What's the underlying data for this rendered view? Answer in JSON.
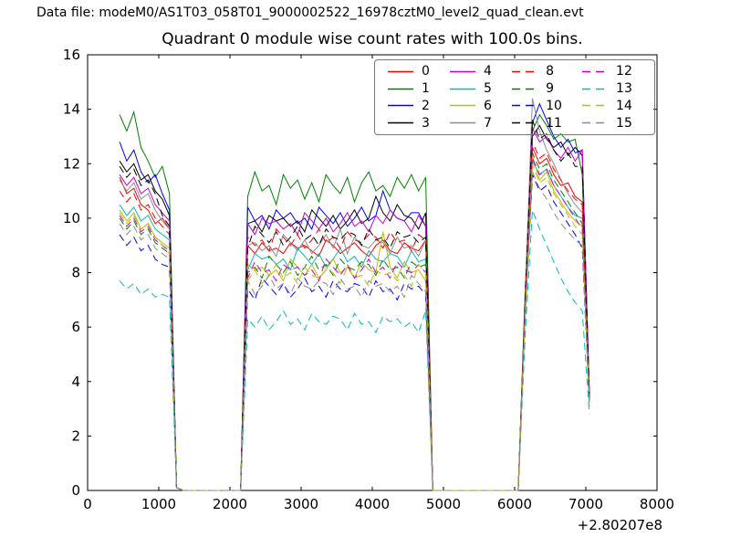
{
  "header": {
    "datafile": "Data file: modeM0/AS1T03_058T01_9000002522_16978cztM0_level2_quad_clean.evt"
  },
  "chart_data": {
    "type": "line",
    "title": "Quadrant 0 module wise count rates with 100.0s bins.",
    "xlabel": "",
    "ylabel": "",
    "bin_seconds": 100.0,
    "xlim": [
      0,
      8000
    ],
    "ylim": [
      0,
      16
    ],
    "xticks": [
      0,
      1000,
      2000,
      3000,
      4000,
      5000,
      6000,
      7000,
      8000
    ],
    "yticks": [
      0,
      2,
      4,
      6,
      8,
      10,
      12,
      14,
      16
    ],
    "x_offset_label": "+2.80207e8",
    "grid": false,
    "legend_position": "upper right",
    "legend_columns": 4,
    "x": [
      450,
      550,
      650,
      750,
      850,
      950,
      1050,
      1150,
      1250,
      1350,
      1450,
      1550,
      1650,
      1750,
      1850,
      1950,
      2050,
      2150,
      2250,
      2350,
      2450,
      2550,
      2650,
      2750,
      2850,
      2950,
      3050,
      3150,
      3250,
      3350,
      3450,
      3550,
      3650,
      3750,
      3850,
      3950,
      4050,
      4150,
      4250,
      4350,
      4450,
      4550,
      4650,
      4750,
      4850,
      4950,
      5050,
      5150,
      5250,
      5350,
      5450,
      5550,
      5650,
      5750,
      5850,
      5950,
      6050,
      6150,
      6250,
      6350,
      6450,
      6550,
      6650,
      6750,
      6850,
      6950,
      7050
    ],
    "series": [
      {
        "name": "0",
        "color": "#ff0000",
        "style": "solid",
        "values": [
          11.5,
          10.9,
          11.1,
          10.5,
          10.3,
          9.8,
          10.0,
          9.6,
          0.1,
          0,
          0,
          0,
          0,
          0,
          0,
          0,
          0,
          0,
          9.0,
          8.7,
          9.1,
          8.8,
          8.9,
          8.7,
          9.1,
          8.9,
          9.0,
          8.8,
          8.6,
          9.2,
          9.0,
          8.7,
          8.9,
          9.1,
          8.8,
          8.6,
          9.0,
          9.2,
          8.8,
          8.7,
          9.1,
          8.9,
          8.8,
          9.2,
          0,
          0,
          0,
          0,
          0,
          0,
          0,
          0,
          0,
          0,
          0,
          0,
          0,
          7.0,
          12.6,
          12.0,
          12.2,
          11.6,
          11.2,
          11.3,
          10.8,
          10.6,
          3.5
        ]
      },
      {
        "name": "1",
        "color": "#008000",
        "style": "solid",
        "values": [
          13.8,
          13.2,
          13.9,
          12.6,
          12.1,
          11.5,
          11.9,
          10.9,
          0.1,
          0,
          0,
          0,
          0,
          0,
          0,
          0,
          0,
          0,
          10.8,
          11.7,
          11.0,
          11.2,
          10.5,
          11.6,
          11.1,
          11.4,
          10.7,
          11.3,
          10.6,
          11.6,
          11.2,
          10.9,
          11.5,
          10.6,
          11.3,
          11.7,
          11.0,
          11.2,
          10.8,
          11.5,
          11.1,
          11.6,
          11.0,
          11.5,
          0,
          0,
          0,
          0,
          0,
          0,
          0,
          0,
          0,
          0,
          0,
          0,
          0,
          7.5,
          13.2,
          13.8,
          13.4,
          12.9,
          13.1,
          12.8,
          12.9,
          11.6,
          3.6
        ]
      },
      {
        "name": "2",
        "color": "#0000ff",
        "style": "solid",
        "values": [
          12.8,
          12.1,
          12.5,
          11.7,
          11.3,
          11.6,
          10.9,
          10.3,
          0.1,
          0,
          0,
          0,
          0,
          0,
          0,
          0,
          0,
          0,
          10.4,
          9.9,
          10.1,
          9.6,
          10.3,
          10.0,
          10.2,
          9.8,
          10.0,
          9.6,
          10.4,
          10.1,
          9.8,
          10.2,
          9.7,
          10.0,
          10.4,
          9.9,
          10.1,
          11.0,
          10.3,
          10.0,
          9.9,
          10.2,
          10.2,
          9.7,
          0,
          0,
          0,
          0,
          0,
          0,
          0,
          0,
          0,
          0,
          0,
          0,
          0,
          7.2,
          13.5,
          14.2,
          13.6,
          13.0,
          12.6,
          12.9,
          12.4,
          12.5,
          3.5
        ]
      },
      {
        "name": "3",
        "color": "#000000",
        "style": "solid",
        "values": [
          12.1,
          11.7,
          12.0,
          11.4,
          11.6,
          11.0,
          10.7,
          10.1,
          0.1,
          0,
          0,
          0,
          0,
          0,
          0,
          0,
          0,
          0,
          9.8,
          9.9,
          9.5,
          10.1,
          9.9,
          10.0,
          9.7,
          9.9,
          9.5,
          10.3,
          10.0,
          9.7,
          10.1,
          9.6,
          9.9,
          10.3,
          9.8,
          10.0,
          10.8,
          10.2,
          9.9,
          10.5,
          10.1,
          10.0,
          9.6,
          10.2,
          0,
          0,
          0,
          0,
          0,
          0,
          0,
          0,
          0,
          0,
          0,
          0,
          0,
          7.1,
          13.0,
          13.4,
          12.9,
          12.6,
          12.8,
          12.3,
          12.6,
          12.3,
          3.4
        ]
      },
      {
        "name": "4",
        "color": "#cc00cc",
        "style": "solid",
        "values": [
          11.6,
          11.2,
          11.5,
          10.9,
          11.1,
          10.5,
          10.2,
          9.9,
          0.1,
          0,
          0,
          0,
          0,
          0,
          0,
          0,
          0,
          0,
          9.8,
          9.4,
          10.0,
          9.8,
          9.9,
          9.6,
          9.8,
          9.4,
          10.2,
          9.9,
          9.6,
          10.0,
          9.5,
          9.8,
          10.2,
          9.7,
          9.9,
          9.5,
          10.1,
          9.8,
          10.3,
          10.0,
          9.9,
          9.5,
          10.1,
          9.7,
          0,
          0,
          0,
          0,
          0,
          0,
          0,
          0,
          0,
          0,
          0,
          0,
          0,
          7.0,
          13.3,
          12.8,
          13.0,
          12.5,
          12.2,
          12.6,
          12.1,
          12.5,
          3.5
        ]
      },
      {
        "name": "5",
        "color": "#00bcbc",
        "style": "solid",
        "values": [
          10.5,
          10.1,
          10.4,
          9.9,
          10.1,
          9.6,
          9.4,
          9.2,
          0.1,
          0,
          0,
          0,
          0,
          0,
          0,
          0,
          0,
          0,
          8.1,
          8.7,
          8.5,
          8.6,
          8.3,
          8.5,
          8.1,
          8.9,
          8.6,
          8.3,
          8.7,
          8.2,
          8.5,
          8.9,
          8.4,
          8.6,
          8.2,
          8.8,
          8.5,
          8.4,
          8.7,
          8.6,
          8.2,
          8.8,
          8.4,
          8.5,
          0,
          0,
          0,
          0,
          0,
          0,
          0,
          0,
          0,
          0,
          0,
          0,
          0,
          6.8,
          12.1,
          11.6,
          11.8,
          11.2,
          10.8,
          10.4,
          10.1,
          10.0,
          3.3
        ]
      },
      {
        "name": "6",
        "color": "#bcbc00",
        "style": "solid",
        "values": [
          10.3,
          9.9,
          10.2,
          9.6,
          9.8,
          9.3,
          9.1,
          8.9,
          0.1,
          0,
          0,
          0,
          0,
          0,
          0,
          0,
          0,
          0,
          8.3,
          8.1,
          8.2,
          7.9,
          8.1,
          7.7,
          8.5,
          8.2,
          7.9,
          8.3,
          7.8,
          8.1,
          8.5,
          8.0,
          8.2,
          7.8,
          8.4,
          8.1,
          8.0,
          9.5,
          8.2,
          7.8,
          8.4,
          8.0,
          8.1,
          7.7,
          0,
          0,
          0,
          0,
          0,
          0,
          0,
          0,
          0,
          0,
          0,
          0,
          0,
          6.7,
          12.3,
          11.4,
          11.7,
          11.0,
          10.6,
          10.2,
          9.9,
          9.7,
          3.2
        ]
      },
      {
        "name": "7",
        "color": "#8c8c8c",
        "style": "solid",
        "values": [
          11.4,
          11.0,
          11.3,
          10.7,
          10.9,
          10.3,
          9.9,
          9.6,
          0.1,
          0,
          0,
          0,
          0,
          0,
          0,
          0,
          0,
          0,
          9.0,
          9.1,
          8.8,
          9.0,
          8.6,
          9.4,
          9.1,
          8.8,
          9.2,
          8.7,
          9.0,
          9.4,
          8.9,
          9.6,
          8.7,
          9.3,
          9.0,
          8.9,
          9.2,
          9.1,
          8.7,
          9.3,
          8.9,
          9.0,
          8.6,
          9.2,
          0,
          0,
          0,
          0,
          0,
          0,
          0,
          0,
          0,
          0,
          0,
          0,
          0,
          7.3,
          14.4,
          13.2,
          12.5,
          12.0,
          11.4,
          10.9,
          10.5,
          10.2,
          3.4
        ]
      },
      {
        "name": "8",
        "color": "#ff0000",
        "style": "dashed",
        "values": [
          11.0,
          10.6,
          10.9,
          10.3,
          10.5,
          10.0,
          9.7,
          9.4,
          0.1,
          0,
          0,
          0,
          0,
          0,
          0,
          0,
          0,
          0,
          9.3,
          9.0,
          9.2,
          8.8,
          9.6,
          9.3,
          9.0,
          9.4,
          8.9,
          9.2,
          9.6,
          9.1,
          9.3,
          8.9,
          9.5,
          9.2,
          9.1,
          9.4,
          9.3,
          8.9,
          9.5,
          9.1,
          9.2,
          8.8,
          9.4,
          9.2,
          0,
          0,
          0,
          0,
          0,
          0,
          0,
          0,
          0,
          0,
          0,
          0,
          0,
          7.1,
          12.8,
          12.2,
          12.4,
          11.8,
          11.4,
          11.0,
          10.7,
          10.5,
          3.4
        ]
      },
      {
        "name": "9",
        "color": "#008000",
        "style": "dashed",
        "values": [
          10.0,
          9.6,
          9.9,
          9.4,
          9.6,
          9.1,
          8.9,
          8.7,
          0.1,
          0,
          0,
          0,
          0,
          0,
          0,
          0,
          0,
          0,
          8.0,
          8.2,
          7.8,
          8.6,
          8.3,
          8.0,
          8.4,
          7.9,
          8.2,
          8.6,
          8.1,
          8.3,
          7.9,
          8.5,
          8.2,
          8.1,
          8.4,
          8.3,
          7.9,
          8.5,
          8.1,
          8.2,
          7.8,
          8.4,
          8.2,
          8.3,
          0,
          0,
          0,
          0,
          0,
          0,
          0,
          0,
          0,
          0,
          0,
          0,
          0,
          6.9,
          12.4,
          11.8,
          12.0,
          11.4,
          11.0,
          10.6,
          10.2,
          9.8,
          3.3
        ]
      },
      {
        "name": "10",
        "color": "#0000ff",
        "style": "dashed",
        "values": [
          9.4,
          9.0,
          9.3,
          8.8,
          9.0,
          8.5,
          8.3,
          8.2,
          0.1,
          0,
          0,
          0,
          0,
          0,
          0,
          0,
          0,
          0,
          7.4,
          7.0,
          7.8,
          7.5,
          7.2,
          7.6,
          7.1,
          7.4,
          7.8,
          7.3,
          7.5,
          7.1,
          7.7,
          7.4,
          7.3,
          7.6,
          7.5,
          7.1,
          7.7,
          7.3,
          7.4,
          7.0,
          7.6,
          7.4,
          7.5,
          7.2,
          0,
          0,
          0,
          0,
          0,
          0,
          0,
          0,
          0,
          0,
          0,
          0,
          0,
          6.5,
          11.6,
          11.0,
          11.2,
          10.6,
          10.2,
          9.8,
          9.4,
          8.9,
          3.1
        ]
      },
      {
        "name": "11",
        "color": "#000000",
        "style": "dashed",
        "values": [
          11.9,
          11.5,
          11.8,
          11.2,
          11.4,
          10.9,
          10.1,
          9.7,
          0.1,
          0,
          0,
          0,
          0,
          0,
          0,
          0,
          0,
          0,
          8.9,
          9.7,
          9.4,
          9.1,
          9.5,
          9.0,
          9.3,
          9.7,
          9.2,
          9.4,
          9.0,
          9.6,
          9.3,
          9.2,
          9.5,
          9.4,
          9.0,
          9.6,
          9.2,
          9.3,
          8.9,
          9.5,
          9.3,
          9.4,
          9.1,
          9.3,
          0,
          0,
          0,
          0,
          0,
          0,
          0,
          0,
          0,
          0,
          0,
          0,
          0,
          7.2,
          13.6,
          12.9,
          13.1,
          12.5,
          12.1,
          12.4,
          11.9,
          11.9,
          3.4
        ]
      },
      {
        "name": "12",
        "color": "#cc00cc",
        "style": "dashed",
        "values": [
          10.1,
          9.7,
          10.0,
          9.5,
          9.7,
          9.2,
          9.0,
          8.8,
          0.1,
          0,
          0,
          0,
          0,
          0,
          0,
          0,
          0,
          0,
          7.8,
          8.4,
          8.0,
          8.1,
          7.7,
          8.3,
          8.1,
          8.2,
          7.9,
          8.1,
          7.7,
          8.5,
          8.2,
          7.9,
          8.3,
          7.8,
          8.1,
          8.5,
          8.0,
          8.2,
          7.8,
          8.4,
          8.1,
          8.0,
          8.3,
          8.0,
          0,
          0,
          0,
          0,
          0,
          0,
          0,
          0,
          0,
          0,
          0,
          0,
          0,
          6.8,
          12.2,
          11.6,
          11.8,
          11.2,
          10.8,
          10.4,
          10.0,
          9.6,
          3.2
        ]
      },
      {
        "name": "13",
        "color": "#00bcbc",
        "style": "dashed",
        "values": [
          7.7,
          7.4,
          7.6,
          7.2,
          7.4,
          7.1,
          7.2,
          7.1,
          0.1,
          0,
          0,
          0,
          0,
          0,
          0,
          0,
          0,
          0,
          6.3,
          6.0,
          6.4,
          5.9,
          6.2,
          6.6,
          6.1,
          6.3,
          5.9,
          6.5,
          6.2,
          6.1,
          6.4,
          6.3,
          5.9,
          6.5,
          6.1,
          6.2,
          5.8,
          6.4,
          6.2,
          6.3,
          6.0,
          6.2,
          5.8,
          6.6,
          0,
          0,
          0,
          0,
          0,
          0,
          0,
          0,
          0,
          0,
          0,
          0,
          0,
          5.8,
          10.3,
          9.6,
          9.0,
          8.4,
          7.8,
          7.3,
          6.9,
          6.6,
          2.8
        ]
      },
      {
        "name": "14",
        "color": "#bcbc00",
        "style": "dashed",
        "values": [
          10.2,
          9.8,
          10.1,
          9.6,
          9.8,
          9.3,
          9.0,
          8.7,
          0.1,
          0,
          0,
          0,
          0,
          0,
          0,
          0,
          0,
          0,
          7.7,
          8.1,
          7.6,
          7.9,
          8.3,
          7.8,
          8.0,
          7.6,
          8.2,
          7.9,
          7.8,
          8.1,
          8.0,
          7.6,
          8.2,
          7.8,
          7.9,
          7.5,
          8.1,
          7.9,
          8.0,
          7.7,
          7.9,
          7.5,
          8.3,
          8.0,
          0,
          0,
          0,
          0,
          0,
          0,
          0,
          0,
          0,
          0,
          0,
          0,
          0,
          6.6,
          12.0,
          11.3,
          11.5,
          10.9,
          10.5,
          10.1,
          9.7,
          9.4,
          3.2
        ]
      },
      {
        "name": "15",
        "color": "#8c8c8c",
        "style": "dashed",
        "values": [
          9.8,
          9.4,
          9.7,
          9.2,
          9.4,
          8.9,
          8.7,
          8.5,
          0.1,
          0,
          0,
          0,
          0,
          0,
          0,
          0,
          0,
          0,
          7.7,
          7.2,
          7.5,
          7.9,
          7.4,
          7.6,
          7.2,
          7.8,
          7.5,
          7.4,
          7.7,
          7.6,
          7.2,
          7.8,
          7.4,
          7.5,
          7.1,
          7.7,
          7.5,
          7.6,
          7.3,
          7.5,
          7.1,
          7.9,
          7.6,
          7.3,
          0,
          0,
          0,
          0,
          0,
          0,
          0,
          0,
          0,
          0,
          0,
          0,
          0,
          6.4,
          11.7,
          11.1,
          10.7,
          10.2,
          9.8,
          9.5,
          9.2,
          9.0,
          3.1
        ]
      }
    ]
  }
}
